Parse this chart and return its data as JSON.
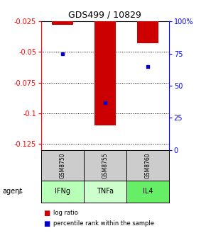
{
  "title": "GDS499 / 10829",
  "samples": [
    "GSM8750",
    "GSM8755",
    "GSM8760"
  ],
  "agents": [
    "IFNg",
    "TNFa",
    "IL4"
  ],
  "log_ratios": [
    -0.028,
    -0.11,
    -0.043
  ],
  "percentile_ranks": [
    75,
    37,
    65
  ],
  "ylim_left": [
    -0.13,
    -0.025
  ],
  "ylim_right": [
    0,
    100
  ],
  "left_ticks": [
    -0.025,
    -0.05,
    -0.075,
    -0.1,
    -0.125
  ],
  "right_ticks": [
    100,
    75,
    50,
    25,
    0
  ],
  "bar_color": "#cc0000",
  "dot_color": "#0000cc",
  "agent_colors": [
    "#b8ffb8",
    "#ccffcc",
    "#66ee66"
  ],
  "sample_bg": "#cccccc",
  "figsize": [
    2.9,
    3.36
  ],
  "dpi": 100
}
